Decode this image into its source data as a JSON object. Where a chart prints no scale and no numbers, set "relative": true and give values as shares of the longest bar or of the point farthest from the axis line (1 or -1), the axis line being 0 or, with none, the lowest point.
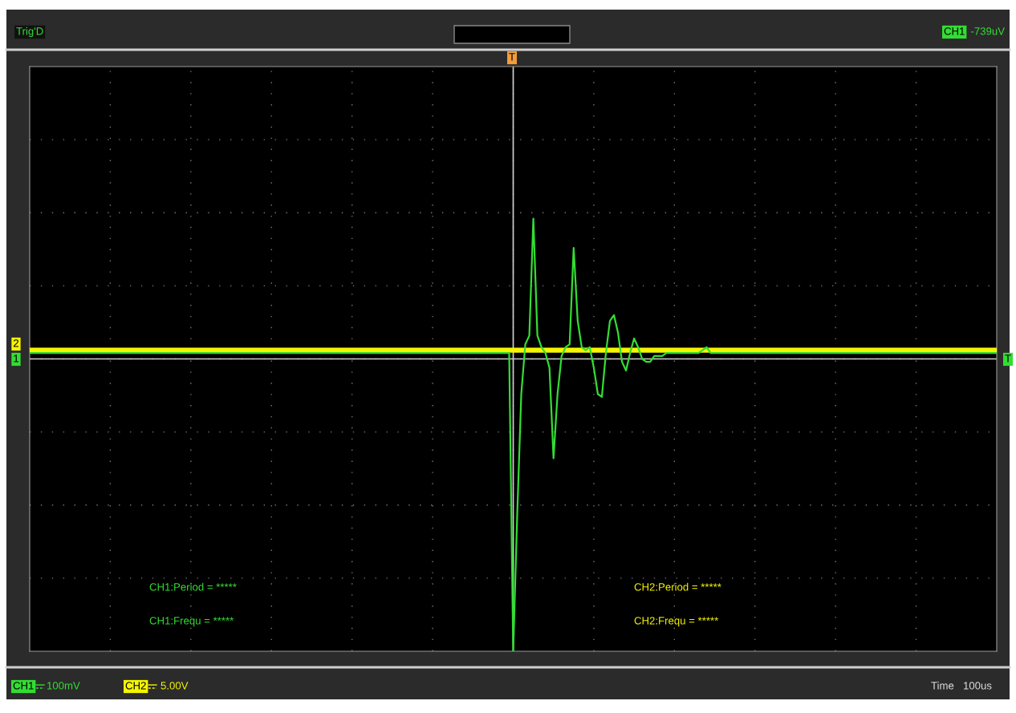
{
  "chart_data": {
    "type": "line",
    "relative": true,
    "grid": true,
    "legend": "bottom",
    "marker": "none",
    "line_style": "solid",
    "categories": [
      null,
      null,
      null,
      null,
      null,
      null,
      null,
      null,
      null,
      null,
      null,
      null,
      null,
      null,
      null,
      null,
      null,
      null,
      null,
      null,
      null,
      null,
      null,
      null,
      null,
      null,
      null,
      null,
      null,
      null,
      null,
      null,
      null,
      null,
      null,
      null,
      null,
      null,
      null,
      null,
      null,
      null,
      null,
      null,
      null,
      null,
      null,
      null,
      null,
      null,
      null,
      null,
      null,
      null,
      null,
      null,
      null,
      null,
      null,
      null,
      null,
      null,
      null,
      null,
      null,
      null,
      null,
      null,
      null,
      null,
      null,
      null,
      null,
      null,
      null,
      null,
      null,
      null,
      null,
      null,
      null,
      null,
      null,
      null,
      null,
      null,
      null,
      null,
      null,
      null,
      null,
      null,
      null,
      null,
      null,
      null,
      null,
      null,
      null,
      null,
      null,
      null,
      null,
      null,
      null,
      null,
      null,
      null,
      null,
      null,
      null,
      null,
      null,
      null,
      null,
      null,
      null,
      null,
      null,
      null,
      null,
      null,
      null,
      null,
      null,
      null,
      null,
      null,
      null,
      null,
      null,
      null,
      null,
      null,
      null,
      null,
      null,
      null,
      null,
      null,
      null,
      null,
      null,
      null,
      null,
      null,
      null,
      null,
      null,
      null,
      null,
      null,
      null,
      null,
      null,
      null,
      null,
      null,
      null,
      null,
      null,
      null,
      null,
      null,
      null,
      null,
      null,
      null,
      null,
      null,
      null,
      null,
      null,
      null,
      null,
      null,
      null,
      null,
      null,
      null,
      null,
      null,
      null,
      null,
      null,
      null,
      null,
      null,
      null,
      null,
      null,
      null,
      null,
      null,
      null,
      null,
      null,
      null,
      null,
      null,
      null,
      null,
      null,
      null,
      null,
      null,
      null,
      null,
      null,
      null,
      null,
      null,
      null,
      null,
      null,
      null,
      null,
      null,
      null,
      null,
      null,
      null,
      null,
      null,
      null,
      null,
      null,
      null,
      null,
      null,
      null,
      null,
      null,
      null,
      null,
      null,
      null,
      null,
      null,
      null,
      null
    ],
    "series": [
      {
        "name": "CH2",
        "color": "#f5f500",
        "values": [
          0.03,
          0.03,
          0.03,
          0.03,
          0.03,
          0.03,
          0.03,
          0.03,
          0.03,
          0.03,
          0.03,
          0.03,
          0.03,
          0.03,
          0.03,
          0.03,
          0.03,
          0.03,
          0.03,
          0.03,
          0.03,
          0.03,
          0.03,
          0.03,
          0.03,
          0.03,
          0.03,
          0.03,
          0.03,
          0.03,
          0.03,
          0.03,
          0.03,
          0.03,
          0.03,
          0.03,
          0.03,
          0.03,
          0.03,
          0.03,
          0.03,
          0.03,
          0.03,
          0.03,
          0.03,
          0.03,
          0.03,
          0.03,
          0.03,
          0.03,
          0.03,
          0.03,
          0.03,
          0.03,
          0.03,
          0.03,
          0.03,
          0.03,
          0.03,
          0.03,
          0.03,
          0.03,
          0.03,
          0.03,
          0.03,
          0.03,
          0.03,
          0.03,
          0.03,
          0.03,
          0.03,
          0.03,
          0.03,
          0.03,
          0.03,
          0.03,
          0.03,
          0.03,
          0.03,
          0.03,
          0.03,
          0.03,
          0.03,
          0.03,
          0.03,
          0.03,
          0.03,
          0.03,
          0.03,
          0.03,
          0.03,
          0.03,
          0.03,
          0.03,
          0.03,
          0.03,
          0.03,
          0.03,
          0.03,
          0.03,
          0.03,
          0.03,
          0.03,
          0.03,
          0.03,
          0.03,
          0.03,
          0.03,
          0.03,
          0.03,
          0.03,
          0.03,
          0.03,
          0.03,
          0.03,
          0.03,
          0.03,
          0.03,
          0.03,
          0.03,
          0.03,
          0.03,
          0.03,
          0.03,
          0.03,
          0.03,
          0.03,
          0.03,
          0.03,
          0.03,
          0.03,
          0.03,
          0.03,
          0.03,
          0.03,
          0.03,
          0.03,
          0.03,
          0.03,
          0.03,
          0.03,
          0.03,
          0.03,
          0.03,
          0.03,
          0.03,
          0.03,
          0.03,
          0.03,
          0.03,
          0.03,
          0.03,
          0.03,
          0.03,
          0.03,
          0.03,
          0.03,
          0.03,
          0.03,
          0.03,
          0.03,
          0.03,
          0.03,
          0.03,
          0.03,
          0.03,
          0.03,
          0.03,
          0.03,
          0.03,
          0.03,
          0.03,
          0.03,
          0.03,
          0.03,
          0.03,
          0.03,
          0.03,
          0.03,
          0.03,
          0.03,
          0.03,
          0.03,
          0.03,
          0.03,
          0.03,
          0.03,
          0.03,
          0.03,
          0.03,
          0.03,
          0.03,
          0.03,
          0.03,
          0.03,
          0.03,
          0.03,
          0.03,
          0.03,
          0.03,
          0.03,
          0.03,
          0.03,
          0.03,
          0.03,
          0.03,
          0.03,
          0.03,
          0.03,
          0.03,
          0.03,
          0.03,
          0.03,
          0.03,
          0.03,
          0.03,
          0.03,
          0.03,
          0.03,
          0.03,
          0.03,
          0.03,
          0.03,
          0.03,
          0.03,
          0.03,
          0.03,
          0.03,
          0.03,
          0.03,
          0.03,
          0.03,
          0.03,
          0.03,
          0.03,
          0.03,
          0.03,
          0.03,
          0.03,
          0.03,
          0.03
        ]
      },
      {
        "name": "CH1",
        "color": "#33dd33",
        "values": [
          0.02,
          0.02,
          0.02,
          0.02,
          0.02,
          0.02,
          0.02,
          0.02,
          0.02,
          0.02,
          0.02,
          0.02,
          0.02,
          0.02,
          0.02,
          0.02,
          0.02,
          0.02,
          0.02,
          0.02,
          0.02,
          0.02,
          0.02,
          0.02,
          0.02,
          0.02,
          0.02,
          0.02,
          0.02,
          0.02,
          0.02,
          0.02,
          0.02,
          0.02,
          0.02,
          0.02,
          0.02,
          0.02,
          0.02,
          0.02,
          0.02,
          0.02,
          0.02,
          0.02,
          0.02,
          0.02,
          0.02,
          0.02,
          0.02,
          0.02,
          0.02,
          0.02,
          0.02,
          0.02,
          0.02,
          0.02,
          0.02,
          0.02,
          0.02,
          0.02,
          0.02,
          0.02,
          0.02,
          0.02,
          0.02,
          0.02,
          0.02,
          0.02,
          0.02,
          0.02,
          0.02,
          0.02,
          0.02,
          0.02,
          0.02,
          0.02,
          0.02,
          0.02,
          0.02,
          0.02,
          0.02,
          0.02,
          0.02,
          0.02,
          0.02,
          0.02,
          0.02,
          0.02,
          0.02,
          0.02,
          0.02,
          0.02,
          0.02,
          0.02,
          0.02,
          0.02,
          0.02,
          0.02,
          0.02,
          0.02,
          0.02,
          0.02,
          0.02,
          0.02,
          0.02,
          0.02,
          0.02,
          0.02,
          0.02,
          0.02,
          0.02,
          0.02,
          0.02,
          0.02,
          0.02,
          0.02,
          0.02,
          0.02,
          0.02,
          0.02,
          -1,
          -0.53,
          -0.12,
          0.05,
          0.08,
          0.48,
          0.08,
          0.04,
          0.02,
          -0.03,
          -0.34,
          -0.12,
          0.01,
          0.04,
          0.05,
          0.38,
          0.13,
          0.04,
          0.03,
          0.04,
          -0.03,
          -0.12,
          -0.13,
          0.02,
          0.13,
          0.15,
          0.09,
          -0.01,
          -0.04,
          0.02,
          0.07,
          0.04,
          0,
          -0.01,
          -0.01,
          0.01,
          0.01,
          0.01,
          0.02,
          0.02,
          0.02,
          0.02,
          0.02,
          0.02,
          0.02,
          0.02,
          0.02,
          0.03,
          0.04,
          0.02,
          0.02,
          0.02,
          0.02,
          0.02,
          0.02,
          0.02,
          0.02,
          0.02,
          0.02,
          0.02,
          0.02,
          0.02,
          0.02,
          0.02,
          0.02,
          0.02,
          0.02,
          0.02,
          0.02,
          0.02,
          0.02,
          0.02,
          0.02,
          0.02,
          0.02,
          0.02,
          0.02,
          0.02,
          0.02,
          0.02,
          0.02,
          0.02,
          0.02,
          0.02,
          0.02,
          0.02,
          0.02,
          0.02,
          0.02,
          0.02,
          0.02,
          0.02,
          0.02,
          0.02,
          0.02,
          0.02,
          0.02,
          0.02,
          0.02,
          0.02,
          0.02,
          0.02,
          0.02,
          0.02,
          0.02,
          0.02,
          0.02,
          0.02,
          0.02,
          0.02,
          0.02,
          0.02,
          0.02,
          0.02,
          0.02,
          0.02,
          0.02,
          0.02,
          0.02,
          0.02,
          0.02
        ]
      }
    ],
    "annotations": [
      "Trig'D",
      "-739uV",
      "CH1",
      "100mV",
      "5.00V",
      "Time",
      "100us",
      "CH1:Period = *****",
      "CH1:Frequ = *****",
      "CH2:Period = *****",
      "CH2:Frequ = *****",
      "T",
      "2",
      "1",
      "T"
    ]
  }
}
